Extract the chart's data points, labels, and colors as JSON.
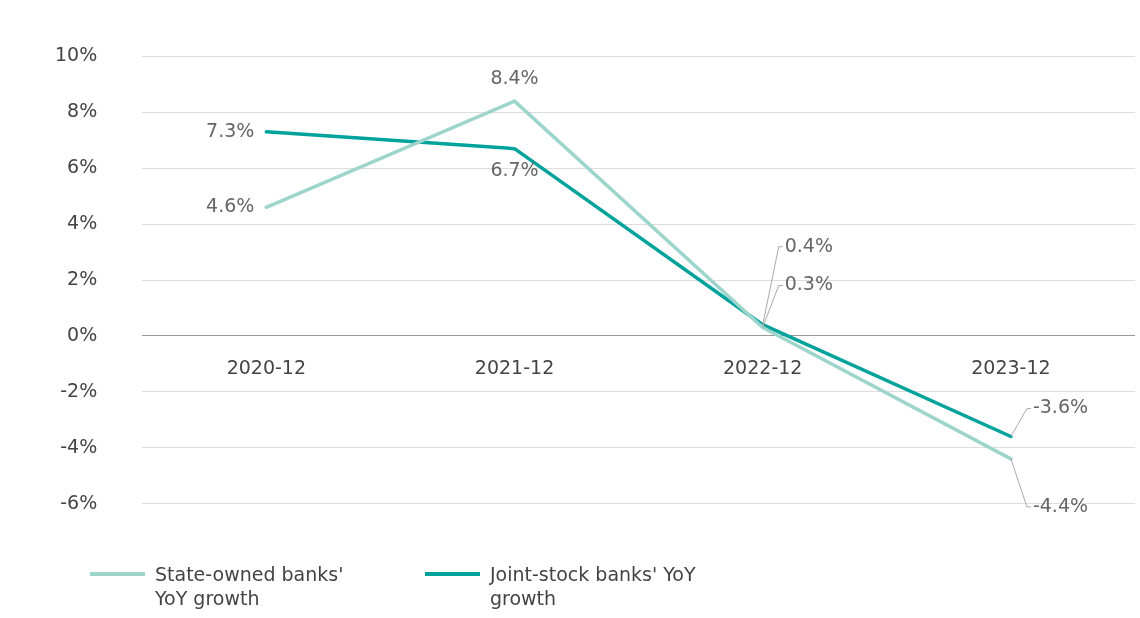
{
  "chart_data": {
    "type": "line",
    "categories": [
      "2020-12",
      "2021-12",
      "2022-12",
      "2023-12"
    ],
    "series": [
      {
        "name": "State-owned banks' YoY growth",
        "color": "#9dd5cd",
        "values": [
          4.6,
          8.4,
          0.3,
          -4.4
        ]
      },
      {
        "name": "Joint-stock banks' YoY growth",
        "color": "#00a29c",
        "values": [
          7.3,
          6.7,
          0.4,
          -3.6
        ]
      }
    ],
    "ylim": [
      -6,
      10
    ],
    "yticks": [
      {
        "value": -6,
        "label": "-6%"
      },
      {
        "value": -4,
        "label": "-4%"
      },
      {
        "value": -2,
        "label": "-2%"
      },
      {
        "value": 0,
        "label": "0%"
      },
      {
        "value": 2,
        "label": "2%"
      },
      {
        "value": 4,
        "label": "4%"
      },
      {
        "value": 6,
        "label": "6%"
      },
      {
        "value": 8,
        "label": "8%"
      },
      {
        "value": 10,
        "label": "10%"
      }
    ],
    "value_labels": [
      [
        "4.6%",
        "8.4%",
        "0.3%",
        "-4.4%"
      ],
      [
        "7.3%",
        "6.7%",
        "0.4%",
        "-3.6%"
      ]
    ],
    "grid": "y",
    "legend": "bottom left",
    "marker": "none",
    "line_style": "solid"
  }
}
